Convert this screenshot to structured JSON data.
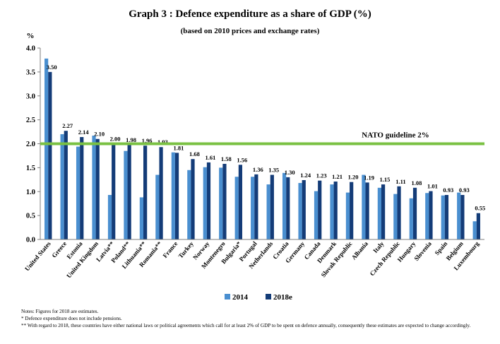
{
  "chart_data": {
    "type": "bar",
    "title": "Graph 3 : Defence expenditure as a share of GDP (%)",
    "subtitle": "(based on 2010 prices and exchange rates)",
    "ylabel": "%",
    "ylim": [
      0,
      4.0
    ],
    "yticks": [
      "0.0",
      "0.5",
      "1.0",
      "1.5",
      "2.0",
      "2.5",
      "3.0",
      "3.5",
      "4.0"
    ],
    "grid": false,
    "legend_position": "bottom-center",
    "categories": [
      "United States",
      "Greece",
      "Estonia",
      "United Kingdom",
      "Latvia**",
      "Poland**",
      "Lithuania**",
      "Romania**",
      "France",
      "Turkey",
      "Norway",
      "Montenegro",
      "Bulgaria*",
      "Portugal",
      "Netherlands",
      "Croatia",
      "Germany",
      "Canada",
      "Denmark",
      "Slovak Republic",
      "Albania",
      "Italy",
      "Czech Republic",
      "Hungary",
      "Slovenia",
      "Spain",
      "Belgium",
      "Luxembourg"
    ],
    "series": [
      {
        "name": "2014",
        "color": "#4a8fd0",
        "values": [
          3.78,
          2.2,
          1.94,
          2.17,
          0.93,
          1.85,
          0.88,
          1.35,
          1.82,
          1.45,
          1.51,
          1.5,
          1.31,
          1.31,
          1.15,
          1.39,
          1.18,
          1.01,
          1.15,
          0.98,
          1.35,
          1.08,
          0.95,
          0.86,
          0.97,
          0.92,
          0.98,
          0.38
        ]
      },
      {
        "name": "2018e",
        "color": "#143c78",
        "values": [
          3.5,
          2.27,
          2.14,
          2.1,
          2.0,
          1.98,
          1.96,
          1.93,
          1.81,
          1.68,
          1.61,
          1.58,
          1.56,
          1.36,
          1.35,
          1.3,
          1.24,
          1.23,
          1.21,
          1.2,
          1.19,
          1.15,
          1.11,
          1.08,
          1.01,
          0.93,
          0.93,
          0.55
        ]
      }
    ],
    "data_labels": [
      "3.50",
      "2.27",
      "2.14",
      "2.10",
      "2.00",
      "1.98",
      "1.96",
      "1.93",
      "1.81",
      "1.68",
      "1.61",
      "1.58",
      "1.56",
      "1.36",
      "1.35",
      "1.30",
      "1.24",
      "1.23",
      "1.21",
      "1.20",
      "1.19",
      "1.15",
      "1.11",
      "1.08",
      "1.01",
      "0.93",
      "0.93",
      "0.55"
    ],
    "reference_line": {
      "value": 2.0,
      "label": "NATO guideline 2%",
      "color": "#7ac143"
    }
  },
  "notes": [
    "Notes: Figures for 2018 are estimates.",
    "*   Defence expenditure does not include pensions.",
    "**  With regard to 2018, these countries have either national laws or political agreements which call for at least 2% of GDP to be spent on defence annually, consequently these estimates are expected to change accordingly."
  ]
}
